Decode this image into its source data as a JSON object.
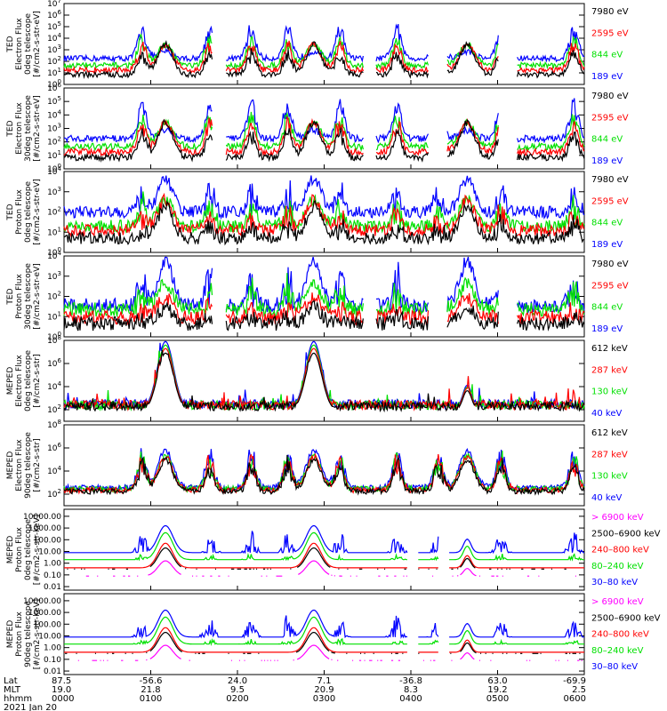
{
  "chart_data": [
    {
      "type": "line",
      "ylabel": [
        "TED",
        "Electron Flux",
        "0deg telescope",
        "[#/cm2-s-str-eV]"
      ],
      "yscale": "log",
      "ytick_labels": [
        "10^0",
        "10^1",
        "10^2",
        "10^3",
        "10^4",
        "10^5",
        "10^6",
        "10^7"
      ],
      "ylim_exp": [
        0,
        7
      ],
      "legend": [
        {
          "name": "7980 eV",
          "color": "#000000"
        },
        {
          "name": "2595 eV",
          "color": "#ff0000"
        },
        {
          "name": "844 eV",
          "color": "#00e000"
        },
        {
          "name": "189 eV",
          "color": "#0000ff"
        }
      ],
      "profile": "ted_e"
    },
    {
      "type": "line",
      "ylabel": [
        "TED",
        "Electron Flux",
        "30deg telescope",
        "[#/cm2-s-str-eV]"
      ],
      "yscale": "log",
      "ytick_labels": [
        "10^0",
        "10^1",
        "10^2",
        "10^3",
        "10^4",
        "10^5",
        "10^6"
      ],
      "ylim_exp": [
        0,
        6
      ],
      "legend": [
        {
          "name": "7980 eV",
          "color": "#000000"
        },
        {
          "name": "2595 eV",
          "color": "#ff0000"
        },
        {
          "name": "844 eV",
          "color": "#00e000"
        },
        {
          "name": "189 eV",
          "color": "#0000ff"
        }
      ],
      "profile": "ted_e"
    },
    {
      "type": "line",
      "ylabel": [
        "TED",
        "Proton Flux",
        "0deg telescope",
        "[#/cm2-s-str-eV]"
      ],
      "yscale": "log",
      "ytick_labels": [
        "10^0",
        "10^1",
        "10^2",
        "10^3",
        "10^4"
      ],
      "ylim_exp": [
        0,
        4
      ],
      "legend": [
        {
          "name": "7980 eV",
          "color": "#000000"
        },
        {
          "name": "2595 eV",
          "color": "#ff0000"
        },
        {
          "name": "844 eV",
          "color": "#00e000"
        },
        {
          "name": "189 eV",
          "color": "#0000ff"
        }
      ],
      "profile": "ted_p"
    },
    {
      "type": "line",
      "ylabel": [
        "TED",
        "Proton Flux",
        "30deg telescope",
        "[#/cm2-s-str-eV]"
      ],
      "yscale": "log",
      "ytick_labels": [
        "10^0",
        "10^1",
        "10^2",
        "10^3",
        "10^4"
      ],
      "ylim_exp": [
        0,
        4
      ],
      "legend": [
        {
          "name": "7980 eV",
          "color": "#000000"
        },
        {
          "name": "2595 eV",
          "color": "#ff0000"
        },
        {
          "name": "844 eV",
          "color": "#00e000"
        },
        {
          "name": "189 eV",
          "color": "#0000ff"
        }
      ],
      "profile": "ted_p30"
    },
    {
      "type": "line",
      "ylabel": [
        "MEPED",
        "Electron Flux",
        "0deg telescope",
        "[#/cm2-s-str]"
      ],
      "yscale": "log",
      "ytick_labels": [
        "10^2",
        "10^4",
        "10^6",
        "10^8"
      ],
      "ylim_exp": [
        1,
        8
      ],
      "legend": [
        {
          "name": "612 keV",
          "color": "#000000"
        },
        {
          "name": "287 keV",
          "color": "#ff0000"
        },
        {
          "name": "130 keV",
          "color": "#00e000"
        },
        {
          "name": "40 keV",
          "color": "#0000ff"
        }
      ],
      "profile": "mep0"
    },
    {
      "type": "line",
      "ylabel": [
        "MEPED",
        "Electron Flux",
        "90deg telescope",
        "[#/cm2-s-str]"
      ],
      "yscale": "log",
      "ytick_labels": [
        "10^2",
        "10^4",
        "10^6",
        "10^8"
      ],
      "ylim_exp": [
        1,
        8
      ],
      "legend": [
        {
          "name": "612 keV",
          "color": "#000000"
        },
        {
          "name": "287 keV",
          "color": "#ff0000"
        },
        {
          "name": "130 keV",
          "color": "#00e000"
        },
        {
          "name": "40 keV",
          "color": "#0000ff"
        }
      ],
      "profile": "mep90"
    },
    {
      "type": "line",
      "ylabel": [
        "MEPED",
        "Proton Flux",
        "0deg telescope",
        "[#/cm2-s-str-keV]"
      ],
      "yscale": "log",
      "ytick_labels": [
        "0.01",
        "0.10",
        "1.00",
        "10.00",
        "100.00",
        "1000.00",
        "10000.00"
      ],
      "ylim_exp": [
        -2.3,
        4.6
      ],
      "legend": [
        {
          "name": "> 6900 keV",
          "color": "#ff00ff"
        },
        {
          "name": "2500–6900 keV",
          "color": "#000000"
        },
        {
          "name": "240–800 keV",
          "color": "#ff0000"
        },
        {
          "name": "80–240 keV",
          "color": "#00e000"
        },
        {
          "name": "30–80 keV",
          "color": "#0000ff"
        }
      ],
      "profile": "mepp"
    },
    {
      "type": "line",
      "ylabel": [
        "MEPED",
        "Proton Flux",
        "90deg telescope",
        "[#/cm2-s-str-keV]"
      ],
      "yscale": "log",
      "ytick_labels": [
        "0.01",
        "0.10",
        "1.00",
        "10.00",
        "100.00",
        "1000.00",
        "10000.00"
      ],
      "ylim_exp": [
        -2.3,
        4.6
      ],
      "legend": [
        {
          "name": "> 6900 keV",
          "color": "#ff00ff"
        },
        {
          "name": "2500–6900 keV",
          "color": "#000000"
        },
        {
          "name": "240–800 keV",
          "color": "#ff0000"
        },
        {
          "name": "80–240 keV",
          "color": "#00e000"
        },
        {
          "name": "30–80 keV",
          "color": "#0000ff"
        }
      ],
      "profile": "mepp"
    }
  ],
  "x_axis": {
    "row_labels": [
      "Lat",
      "MLT",
      "hhmm",
      "2021 Jan 20"
    ],
    "columns": [
      {
        "lat": "87.5",
        "mlt": "19.0",
        "hhmm": "0000"
      },
      {
        "lat": "-56.6",
        "mlt": "21.8",
        "hhmm": "0100"
      },
      {
        "lat": "24.0",
        "mlt": "9.5",
        "hhmm": "0200"
      },
      {
        "lat": "7.1",
        "mlt": "20.9",
        "hhmm": "0300"
      },
      {
        "lat": "-36.8",
        "mlt": "8.3",
        "hhmm": "0400"
      },
      {
        "lat": "63.0",
        "mlt": "19.2",
        "hhmm": "0500"
      },
      {
        "lat": "-69.9",
        "mlt": "2.5",
        "hhmm": "0600"
      }
    ]
  },
  "colors": {
    "black": "#000000",
    "red": "#ff0000",
    "green": "#00e000",
    "blue": "#0000ff",
    "magenta": "#ff00ff"
  }
}
